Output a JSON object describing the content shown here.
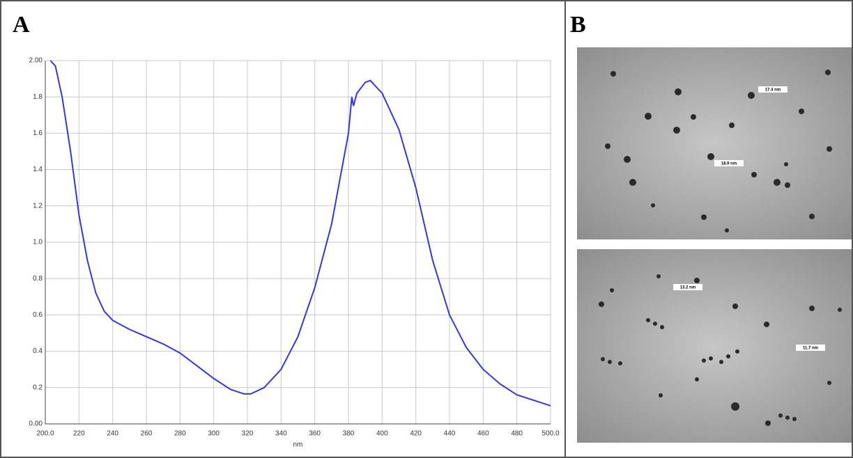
{
  "chart_data": {
    "type": "line",
    "panel_label": "A",
    "x_label": "nm",
    "x": [
      203,
      206,
      210,
      215,
      220,
      225,
      230,
      235,
      240,
      250,
      260,
      270,
      280,
      290,
      300,
      310,
      318,
      322,
      330,
      340,
      350,
      360,
      370,
      375,
      380,
      382,
      383,
      385,
      390,
      393,
      400,
      410,
      420,
      430,
      440,
      450,
      460,
      470,
      480,
      490,
      500
    ],
    "series": [
      {
        "color": "#3535e6",
        "values": [
          2.0,
          1.97,
          1.8,
          1.5,
          1.15,
          0.9,
          0.72,
          0.62,
          0.57,
          0.52,
          0.48,
          0.44,
          0.39,
          0.32,
          0.25,
          0.19,
          0.165,
          0.165,
          0.2,
          0.3,
          0.48,
          0.75,
          1.1,
          1.35,
          1.6,
          1.8,
          1.75,
          1.82,
          1.88,
          1.89,
          1.82,
          1.62,
          1.3,
          0.9,
          0.6,
          0.42,
          0.3,
          0.22,
          0.16,
          0.13,
          0.1
        ]
      }
    ],
    "xlim": [
      200,
      500
    ],
    "xticks": [
      {
        "value": 200,
        "label": "200.0"
      },
      220,
      240,
      260,
      280,
      300,
      320,
      340,
      360,
      380,
      400,
      420,
      440,
      460,
      480,
      {
        "value": 500,
        "label": "500.0"
      }
    ],
    "ylim": [
      0,
      2
    ],
    "yticks": [
      {
        "value": 0,
        "label": "0.00"
      },
      0.2,
      0.4,
      0.6,
      0.8,
      {
        "value": 1,
        "label": "1.0"
      },
      1.2,
      1.4,
      1.6,
      1.8,
      {
        "value": 2,
        "label": "2.00"
      }
    ],
    "grid": true
  },
  "images": {
    "panel_label": "B",
    "scale_labels": [
      "17.4 nm",
      "18.9 nm",
      "13.2 nm",
      "11.7 nm"
    ]
  }
}
